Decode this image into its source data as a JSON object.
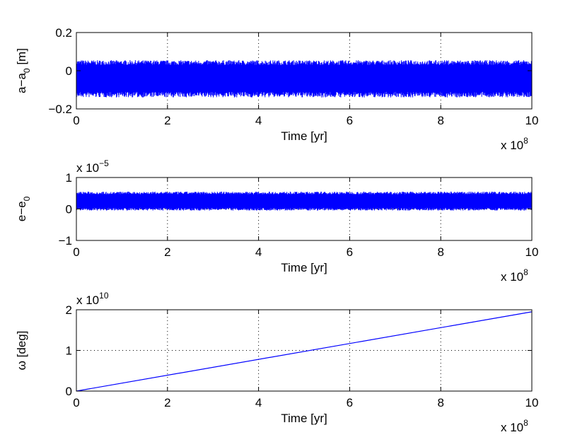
{
  "chart_data": [
    {
      "type": "line",
      "title": "",
      "xlabel": "Time [yr]",
      "ylabel": "a−a",
      "ylabel_sub": "0",
      "ylabel_unit": " [m]",
      "xlim": [
        0,
        10
      ],
      "ylim": [
        -0.2,
        0.2
      ],
      "x_ticks": [
        0,
        2,
        4,
        6,
        8,
        10
      ],
      "y_ticks": [
        -0.2,
        0,
        0.2
      ],
      "x_tick_labels": [
        "0",
        "2",
        "4",
        "6",
        "8",
        "10"
      ],
      "y_tick_labels": [
        "−0.2",
        "0",
        "0.2"
      ],
      "x_exponent": {
        "base": "x 10",
        "power": "8"
      },
      "y_exponent": null,
      "grid": true,
      "line_color": "#0000ff",
      "series": [
        {
          "kind": "oscillation band",
          "x_range": [
            0,
            10
          ],
          "center": -0.035,
          "upper_envelope": 0.055,
          "lower_envelope": -0.14
        }
      ]
    },
    {
      "type": "line",
      "title": "",
      "xlabel": "Time [yr]",
      "ylabel": "e−e",
      "ylabel_sub": "0",
      "ylabel_unit": "",
      "xlim": [
        0,
        10
      ],
      "ylim": [
        -1,
        1
      ],
      "x_ticks": [
        0,
        2,
        4,
        6,
        8,
        10
      ],
      "y_ticks": [
        -1,
        0,
        1
      ],
      "x_tick_labels": [
        "0",
        "2",
        "4",
        "6",
        "8",
        "10"
      ],
      "y_tick_labels": [
        "−1",
        "0",
        "1"
      ],
      "x_exponent": {
        "base": "x 10",
        "power": "8"
      },
      "y_exponent": {
        "base": "x 10",
        "power": "−5"
      },
      "grid": true,
      "line_color": "#0000ff",
      "series": [
        {
          "kind": "oscillation band",
          "x_range": [
            0,
            10
          ],
          "center": 0.25,
          "upper_envelope": 0.55,
          "lower_envelope": -0.05
        }
      ]
    },
    {
      "type": "line",
      "title": "",
      "xlabel": "Time [yr]",
      "ylabel": "ω [deg]",
      "ylabel_sub": "",
      "ylabel_unit": "",
      "xlim": [
        0,
        10
      ],
      "ylim": [
        0,
        2
      ],
      "x_ticks": [
        0,
        2,
        4,
        6,
        8,
        10
      ],
      "y_ticks": [
        0,
        1,
        2
      ],
      "x_tick_labels": [
        "0",
        "2",
        "4",
        "6",
        "8",
        "10"
      ],
      "y_tick_labels": [
        "0",
        "1",
        "2"
      ],
      "x_exponent": {
        "base": "x 10",
        "power": "8"
      },
      "y_exponent": {
        "base": "x 10",
        "power": "10"
      },
      "grid": true,
      "line_color": "#0000ff",
      "series": [
        {
          "kind": "line",
          "x": [
            0,
            10
          ],
          "y": [
            0,
            1.95
          ]
        }
      ]
    }
  ]
}
